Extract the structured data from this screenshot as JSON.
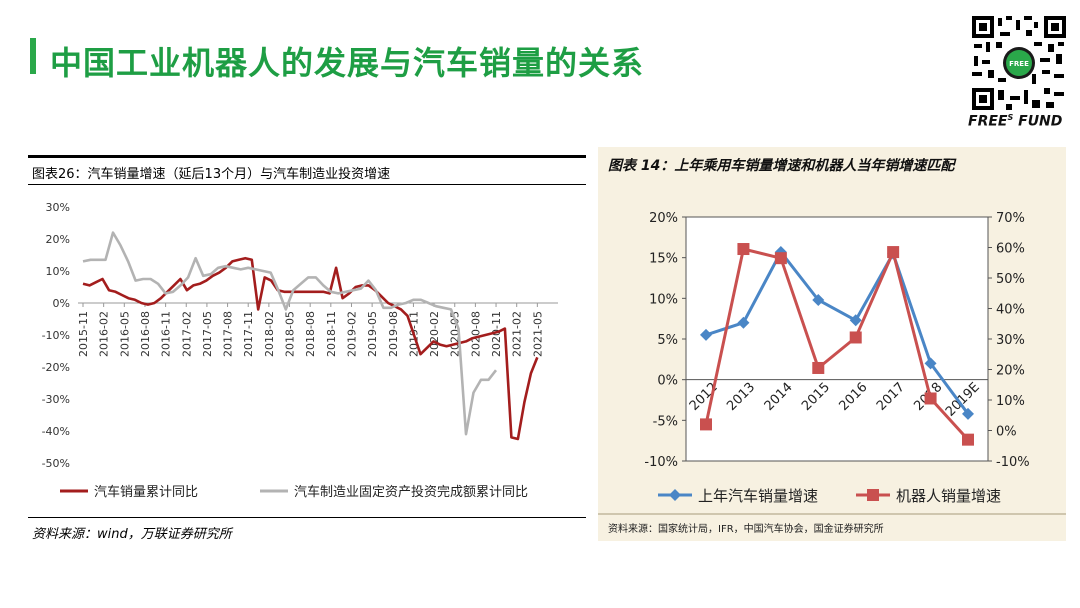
{
  "page": {
    "title": "中国工业机器人的发展与汽车销量的关系",
    "brand": "FREE",
    "brand_sup": "S",
    "brand_suffix": " FUND",
    "qr_center_text": "FREE",
    "colors": {
      "accent": "#1e9e44"
    }
  },
  "left_chart": {
    "header": "图表26：汽车销量增速（延后13个月）与汽车制造业投资增速",
    "source": "资料来源：wind，万联证券研究所"
  },
  "right_chart": {
    "header": "图表 14：上年乘用车销量增速和机器人当年销增速匹配",
    "source": "资料来源：国家统计局，IFR，中国汽车协会，国金证券研究所"
  },
  "chart_data": [
    {
      "type": "line",
      "ylim": [
        -50,
        30
      ],
      "yticks": [
        -50,
        -40,
        -30,
        -20,
        -10,
        0,
        10,
        20,
        30
      ],
      "ytick_labels": [
        "-50%",
        "-40%",
        "-30%",
        "-20%",
        "-10%",
        "0%",
        "10%",
        "20%",
        "30%"
      ],
      "grid": false,
      "legend": "bottom",
      "x_tick_labels": [
        "2015-11",
        "2016-02",
        "2016-05",
        "2016-08",
        "2016-11",
        "2017-02",
        "2017-05",
        "2017-08",
        "2017-11",
        "2018-02",
        "2018-05",
        "2018-08",
        "2018-11",
        "2019-02",
        "2019-05",
        "2019-08",
        "2019-11",
        "2020-02",
        "2020-05",
        "2020-08",
        "2020-11",
        "2021-02",
        "2021-05"
      ],
      "series": [
        {
          "name": "汽车销量累计同比",
          "color": "#a31d1d",
          "values": [
            6,
            5.5,
            6.5,
            7.5,
            4,
            3.5,
            2.5,
            1.5,
            1,
            0,
            -0.5,
            0,
            1.5,
            3.5,
            5.5,
            7.5,
            4,
            5.5,
            6,
            7,
            8.5,
            9.5,
            11,
            13,
            13.5,
            14,
            13.5,
            -2,
            8,
            7,
            4,
            3.5,
            3.5,
            3.5,
            3.5,
            3.5,
            3.5,
            3.5,
            3,
            11,
            1.5,
            3,
            5,
            5.5,
            5.5,
            4,
            2,
            0,
            -1,
            -2,
            -4,
            -10,
            -16,
            -14,
            -12,
            -13,
            -13.5,
            -13,
            -12.5,
            -12,
            -11,
            -10.5,
            -10,
            -9.5,
            -9,
            -8,
            -42,
            -42.5,
            -31,
            -22,
            -17
          ]
        },
        {
          "name": "汽车制造业固定资产投资完成额累计同比",
          "color": "#b3b3b3",
          "values": [
            13,
            13.5,
            13.5,
            13.5,
            22,
            18,
            13,
            7,
            7.5,
            7.5,
            6,
            3,
            3.5,
            5.5,
            8,
            14,
            8.5,
            9,
            11,
            11.5,
            11,
            10.5,
            11,
            10.5,
            10,
            9.5,
            4,
            -2,
            4,
            6,
            8,
            8,
            5.5,
            3.5,
            3,
            3.5,
            4,
            4.5,
            7,
            4,
            -1.5,
            -1.5,
            -0.5,
            0,
            1,
            1,
            0,
            -1,
            -1.5,
            -2,
            -8,
            -41,
            -28,
            -24,
            -24,
            -21
          ]
        }
      ]
    },
    {
      "type": "line",
      "categories": [
        "2012",
        "2013",
        "2014",
        "2015",
        "2016",
        "2017",
        "2018",
        "2019E"
      ],
      "ylim": [
        -10,
        20
      ],
      "yticks": [
        -10,
        -5,
        0,
        5,
        10,
        15,
        20
      ],
      "ytick_labels": [
        "-10%",
        "-5%",
        "0%",
        "5%",
        "10%",
        "15%",
        "20%"
      ],
      "y2lim": [
        -10,
        70
      ],
      "y2ticks": [
        -10,
        0,
        10,
        20,
        30,
        40,
        50,
        60,
        70
      ],
      "y2tick_labels": [
        "-10%",
        "0%",
        "10%",
        "20%",
        "30%",
        "40%",
        "50%",
        "60%",
        "70%"
      ],
      "grid": false,
      "legend": "bottom",
      "series": [
        {
          "name": "上年汽车销量增速",
          "color": "#4a86c6",
          "marker": "diamond",
          "axis": "left",
          "values": [
            5.5,
            7,
            15.7,
            9.8,
            7.3,
            15.5,
            2,
            -4.2
          ]
        },
        {
          "name": "机器人销量增速",
          "color": "#c9504f",
          "marker": "square",
          "axis": "right",
          "values": [
            2,
            59.5,
            56.5,
            20.5,
            30.5,
            58.5,
            10.5,
            -3
          ]
        }
      ]
    }
  ]
}
